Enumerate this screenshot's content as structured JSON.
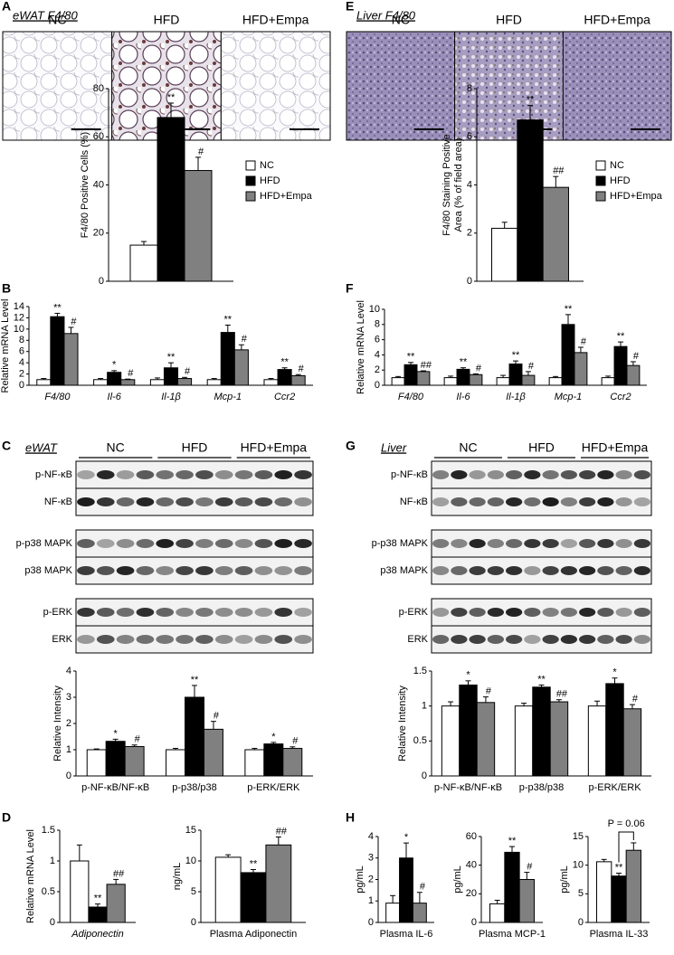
{
  "panels": [
    "A",
    "B",
    "C",
    "D",
    "E",
    "F",
    "G",
    "H"
  ],
  "images": [
    {
      "title": "eWAT F4/80",
      "labels": [
        "NC",
        "HFD",
        "HFD+Empa"
      ]
    },
    {
      "title": "Liver F4/80",
      "labels": [
        "NC",
        "HFD",
        "HFD+Empa"
      ]
    }
  ],
  "blots": [
    {
      "title": "eWAT",
      "groups": [
        "NC",
        "HFD",
        "HFD+Empa"
      ],
      "rows": [
        "p-NF-κB",
        "NF-κB",
        "p-p38 MAPK",
        "p38 MAPK",
        "p-ERK",
        "ERK"
      ]
    },
    {
      "title": "Liver",
      "groups": [
        "NC",
        "HFD",
        "HFD+Empa"
      ],
      "rows": [
        "p-NF-κB",
        "NF-κB",
        "p-p38 MAPK",
        "p38 MAPK",
        "p-ERK",
        "ERK"
      ]
    }
  ],
  "chart_data": [
    {
      "type": "bar",
      "ylabel": [
        "F4/80 Positive Cells (%)"
      ],
      "categories": [
        null
      ],
      "legend": true,
      "ylim": [
        0,
        80
      ],
      "yticks": [
        0,
        20,
        40,
        60,
        80
      ],
      "series": [
        {
          "name": "NC",
          "color": "#ffffff",
          "values": [
            15
          ],
          "errors": [
            1.5
          ],
          "annotations": [
            null
          ]
        },
        {
          "name": "HFD",
          "color": "#000000",
          "values": [
            68
          ],
          "errors": [
            6
          ],
          "annotations": [
            "**"
          ]
        },
        {
          "name": "HFD+Empa",
          "color": "#808080",
          "values": [
            46
          ],
          "errors": [
            5.5
          ],
          "annotations": [
            "#"
          ]
        }
      ]
    },
    {
      "type": "bar",
      "ylabel": [
        "F4/80 Staining Positive",
        "Area  (% of field area)"
      ],
      "categories": [
        null
      ],
      "legend": true,
      "ylim": [
        0,
        8
      ],
      "yticks": [
        0,
        2,
        4,
        6,
        8
      ],
      "series": [
        {
          "name": "NC",
          "color": "#ffffff",
          "values": [
            2.2
          ],
          "errors": [
            0.25
          ],
          "annotations": [
            null
          ]
        },
        {
          "name": "HFD",
          "color": "#000000",
          "values": [
            6.7
          ],
          "errors": [
            0.6
          ],
          "annotations": [
            "**"
          ]
        },
        {
          "name": "HFD+Empa",
          "color": "#808080",
          "values": [
            3.9
          ],
          "errors": [
            0.45
          ],
          "annotations": [
            "##"
          ]
        }
      ]
    },
    {
      "type": "bar",
      "ylabel": [
        "Relative mRNA Level"
      ],
      "categories": [
        "F4/80",
        "Il-6",
        "Il-1β",
        "Mcp-1",
        "Ccr2"
      ],
      "italic_categories": true,
      "ylim": [
        0,
        14
      ],
      "yticks": [
        0,
        2,
        4,
        6,
        8,
        10,
        12,
        14
      ],
      "series": [
        {
          "color": "#ffffff",
          "values": [
            1,
            1,
            1,
            1,
            1
          ],
          "errors": [
            0.2,
            0.2,
            0.3,
            0.2,
            0.2
          ],
          "annotations": [
            null,
            null,
            null,
            null,
            null
          ]
        },
        {
          "color": "#000000",
          "values": [
            12.2,
            2.3,
            3.1,
            9.4,
            2.8
          ],
          "errors": [
            0.6,
            0.3,
            0.9,
            1.3,
            0.3
          ],
          "annotations": [
            "**",
            "*",
            "**",
            "**",
            "**"
          ]
        },
        {
          "color": "#808080",
          "values": [
            9.2,
            1.0,
            1.2,
            6.3,
            1.7
          ],
          "errors": [
            1.1,
            0.1,
            0.2,
            0.9,
            0.2
          ],
          "annotations": [
            "#",
            "#",
            "#",
            "#",
            "#"
          ]
        }
      ]
    },
    {
      "type": "bar",
      "ylabel": [
        "Relative mRNA Level"
      ],
      "categories": [
        "F4/80",
        "Il-6",
        "Il-1β",
        "Mcp-1",
        "Ccr2"
      ],
      "italic_categories": true,
      "ylim": [
        0,
        10
      ],
      "yticks": [
        0,
        2,
        4,
        6,
        8,
        10
      ],
      "series": [
        {
          "color": "#ffffff",
          "values": [
            1,
            1,
            1,
            1,
            1
          ],
          "errors": [
            0.15,
            0.2,
            0.3,
            0.15,
            0.2
          ],
          "annotations": [
            null,
            null,
            null,
            null,
            null
          ]
        },
        {
          "color": "#000000",
          "values": [
            2.7,
            2.1,
            2.8,
            8.0,
            5.1
          ],
          "errors": [
            0.3,
            0.2,
            0.4,
            1.3,
            0.6
          ],
          "annotations": [
            "**",
            "**",
            "**",
            "**",
            "**"
          ]
        },
        {
          "color": "#808080",
          "values": [
            1.8,
            1.4,
            1.3,
            4.3,
            2.6
          ],
          "errors": [
            0.1,
            0.1,
            0.5,
            0.7,
            0.5
          ],
          "annotations": [
            "##",
            "#",
            "#",
            "#",
            "#"
          ]
        }
      ]
    },
    {
      "type": "bar",
      "ylabel": [
        "Relative Intensity"
      ],
      "categories": [
        "p-NF-κB/NF-κB",
        "p-p38/p38",
        "p-ERK/ERK"
      ],
      "ylim": [
        0,
        4
      ],
      "yticks": [
        0,
        1,
        2,
        3,
        4
      ],
      "series": [
        {
          "color": "#ffffff",
          "values": [
            1,
            1,
            1
          ],
          "errors": [
            0.03,
            0.05,
            0.05
          ],
          "annotations": [
            null,
            null,
            null
          ]
        },
        {
          "color": "#000000",
          "values": [
            1.32,
            3.0,
            1.22
          ],
          "errors": [
            0.08,
            0.45,
            0.06
          ],
          "annotations": [
            "*",
            "**",
            "*"
          ]
        },
        {
          "color": "#808080",
          "values": [
            1.12,
            1.78,
            1.05
          ],
          "errors": [
            0.06,
            0.3,
            0.06
          ],
          "annotations": [
            "#",
            "#",
            "#"
          ]
        }
      ]
    },
    {
      "type": "bar",
      "ylabel": [
        "Relative Intensity"
      ],
      "categories": [
        "p-NF-κB/NF-κB",
        "p-p38/p38",
        "p-ERK/ERK"
      ],
      "ylim": [
        0,
        1.5
      ],
      "yticks": [
        0,
        0.5,
        1,
        1.5
      ],
      "series": [
        {
          "color": "#ffffff",
          "values": [
            1,
            1,
            1
          ],
          "errors": [
            0.06,
            0.04,
            0.07
          ],
          "annotations": [
            null,
            null,
            null
          ]
        },
        {
          "color": "#000000",
          "values": [
            1.3,
            1.27,
            1.32
          ],
          "errors": [
            0.06,
            0.03,
            0.08
          ],
          "annotations": [
            "*",
            "**",
            "*"
          ]
        },
        {
          "color": "#808080",
          "values": [
            1.05,
            1.06,
            0.96
          ],
          "errors": [
            0.08,
            0.03,
            0.06
          ],
          "annotations": [
            "#",
            "##",
            "#"
          ]
        }
      ]
    },
    {
      "type": "bar",
      "ylabel": [
        "Relative mRNA Level"
      ],
      "categories": [
        "Adiponectin"
      ],
      "italic_categories": true,
      "ylim": [
        0,
        1.5
      ],
      "yticks": [
        0,
        0.5,
        1,
        1.5
      ],
      "series": [
        {
          "color": "#ffffff",
          "values": [
            1.0
          ],
          "errors": [
            0.26
          ],
          "annotations": [
            null
          ]
        },
        {
          "color": "#000000",
          "values": [
            0.25
          ],
          "errors": [
            0.05
          ],
          "annotations": [
            "**"
          ]
        },
        {
          "color": "#808080",
          "values": [
            0.62
          ],
          "errors": [
            0.08
          ],
          "annotations": [
            "##"
          ]
        }
      ]
    },
    {
      "type": "bar",
      "ylabel": [
        "ng/mL"
      ],
      "categories": [
        "Plasma Adiponectin"
      ],
      "ylim": [
        0,
        15
      ],
      "yticks": [
        0,
        5,
        10,
        15
      ],
      "series": [
        {
          "color": "#ffffff",
          "values": [
            10.6
          ],
          "errors": [
            0.4
          ],
          "annotations": [
            null
          ]
        },
        {
          "color": "#000000",
          "values": [
            8.1
          ],
          "errors": [
            0.5
          ],
          "annotations": [
            "**"
          ]
        },
        {
          "color": "#808080",
          "values": [
            12.6
          ],
          "errors": [
            1.3
          ],
          "annotations": [
            "##"
          ]
        }
      ]
    },
    {
      "type": "bar",
      "ylabel": [
        "pg/mL"
      ],
      "categories": [
        "Plasma IL-6"
      ],
      "ylim": [
        0,
        4
      ],
      "yticks": [
        0,
        1,
        2,
        3,
        4
      ],
      "series": [
        {
          "color": "#ffffff",
          "values": [
            0.9
          ],
          "errors": [
            0.35
          ],
          "annotations": [
            null
          ]
        },
        {
          "color": "#000000",
          "values": [
            3.0
          ],
          "errors": [
            0.7
          ],
          "annotations": [
            "*"
          ]
        },
        {
          "color": "#808080",
          "values": [
            0.9
          ],
          "errors": [
            0.5
          ],
          "annotations": [
            "#"
          ]
        }
      ]
    },
    {
      "type": "bar",
      "ylabel": [
        "pg/mL"
      ],
      "categories": [
        "Plasma MCP-1"
      ],
      "ylim": [
        0,
        60
      ],
      "yticks": [
        0,
        20,
        40,
        60
      ],
      "series": [
        {
          "color": "#ffffff",
          "values": [
            13
          ],
          "errors": [
            2.5
          ],
          "annotations": [
            null
          ]
        },
        {
          "color": "#000000",
          "values": [
            49
          ],
          "errors": [
            4
          ],
          "annotations": [
            "**"
          ]
        },
        {
          "color": "#808080",
          "values": [
            30
          ],
          "errors": [
            5
          ],
          "annotations": [
            "#"
          ]
        }
      ]
    },
    {
      "type": "bar",
      "ylabel": [
        "pg/mL"
      ],
      "categories": [
        "Plasma IL-33"
      ],
      "ylim": [
        0,
        15
      ],
      "yticks": [
        0,
        5,
        10,
        15
      ],
      "annotation": "P = 0.06",
      "series": [
        {
          "color": "#ffffff",
          "values": [
            10.6
          ],
          "errors": [
            0.4
          ],
          "annotations": [
            null
          ]
        },
        {
          "color": "#000000",
          "values": [
            8.1
          ],
          "errors": [
            0.5
          ],
          "annotations": [
            "**"
          ]
        },
        {
          "color": "#808080",
          "values": [
            12.6
          ],
          "errors": [
            1.3
          ],
          "annotations": [
            null
          ]
        }
      ]
    }
  ]
}
